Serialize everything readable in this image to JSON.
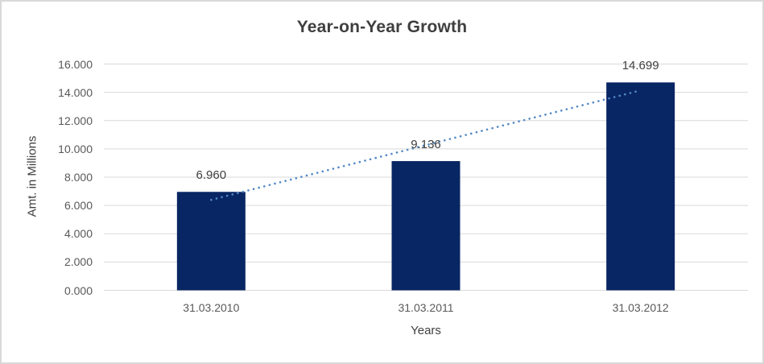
{
  "chart_data": {
    "type": "bar",
    "title": "Year-on-Year Growth",
    "categories": [
      "31.03.2010",
      "31.03.2011",
      "31.03.2012"
    ],
    "values": [
      6.96,
      9.136,
      14.699
    ],
    "value_labels": [
      "6.960",
      "9.136",
      "14.699"
    ],
    "xlabel": "Years",
    "ylabel": "Amt. in Millions",
    "ylim": [
      0,
      16
    ],
    "ytick_step": 2,
    "ytick_labels": [
      "0.000",
      "2.000",
      "4.000",
      "6.000",
      "8.000",
      "10.000",
      "12.000",
      "14.000",
      "16.000"
    ],
    "grid": true,
    "legend": "none",
    "trendline": {
      "type": "linear",
      "style": "dotted"
    },
    "colors": {
      "bar": "#082663",
      "trendline": "#5289C7",
      "gridline": "#D9D9D9",
      "border": "#D9D9D9",
      "background": "#FFFFFF",
      "title_text": "#3F3F3F",
      "tick_text": "#595959",
      "axis_title_text": "#404040",
      "data_label_text": "#404040"
    }
  }
}
